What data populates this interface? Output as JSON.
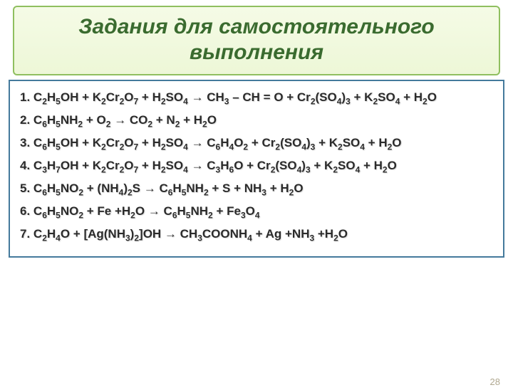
{
  "title": {
    "text": "Задания для самостоятельного выполнения",
    "color": "#3a6b2f",
    "border_color": "#8fbf5f",
    "bg_top": "#f5fbe6",
    "bg_bottom": "#edf7d7",
    "fontsize": 30
  },
  "content": {
    "border_color": "#447a9c",
    "text_color": "#2b2b2b",
    "fontsize": 17,
    "equations": [
      "1. C<sub>2</sub>H<sub>5</sub>OH + K<sub>2</sub>Cr<sub>2</sub>O<sub>7</sub> +  H<sub>2</sub>SO<sub>4</sub> → CH<sub>3</sub> – CH = O + Cr<sub>2</sub>(SO<sub>4</sub>)<sub>3</sub> + K<sub>2</sub>SO<sub>4</sub> + H<sub>2</sub>O",
      "2. C<sub>6</sub>H<sub>5</sub>NH<sub>2</sub> + O<sub>2</sub> → CO<sub>2</sub> + N<sub>2</sub> + H<sub>2</sub>O",
      "3. C<sub>6</sub>H<sub>5</sub>OH + K<sub>2</sub>Cr<sub>2</sub>O<sub>7</sub> +  H<sub>2</sub>SO<sub>4</sub> → C<sub>6</sub>H<sub>4</sub>O<sub>2</sub> + Cr<sub>2</sub>(SO<sub>4</sub>)<sub>3</sub> + K<sub>2</sub>SO<sub>4</sub> + H<sub>2</sub>O",
      "4. C<sub>3</sub>H<sub>7</sub>OH + K<sub>2</sub>Cr<sub>2</sub>O<sub>7</sub> +  H<sub>2</sub>SO<sub>4</sub> → C<sub>3</sub>H<sub>6</sub>O + Cr<sub>2</sub>(SO<sub>4</sub>)<sub>3</sub> + K<sub>2</sub>SO<sub>4</sub> + H<sub>2</sub>O",
      "5. C<sub>6</sub>H<sub>5</sub>NO<sub>2</sub> + (NH<sub>4</sub>)<sub>2</sub>S → C<sub>6</sub>H<sub>5</sub>NH<sub>2</sub> + S + NH<sub>3</sub> + H<sub>2</sub>O",
      "6. C<sub>6</sub>H<sub>5</sub>NO<sub>2</sub> + Fe +H<sub>2</sub>O → C<sub>6</sub>H<sub>5</sub>NH<sub>2</sub> + Fe<sub>3</sub>O<sub>4</sub>",
      "7. C<sub>2</sub>H<sub>4</sub>O + [Ag(NH<sub>3</sub>)<sub>2</sub>]OH → CH<sub>3</sub>COONH<sub>4</sub> + Ag +NH<sub>3</sub> +H<sub>2</sub>O"
    ]
  },
  "page_number": "28"
}
